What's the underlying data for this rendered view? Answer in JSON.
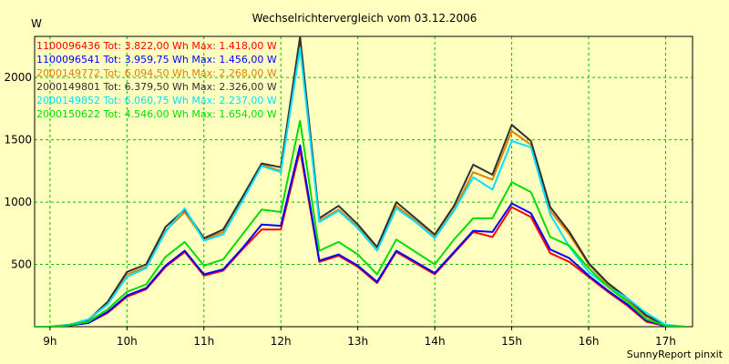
{
  "chart_data": {
    "type": "line",
    "title": "Wechselrichtervergleich vom 03.12.2006",
    "ylabel": "W",
    "xlabel": "",
    "footer": "SunnyReport pinxit",
    "x_tick_labels": [
      "9h",
      "10h",
      "11h",
      "12h",
      "13h",
      "14h",
      "15h",
      "16h",
      "17h"
    ],
    "x_tick_hours": [
      9,
      10,
      11,
      12,
      13,
      14,
      15,
      16,
      17
    ],
    "y_ticks": [
      500,
      1000,
      1500,
      2000
    ],
    "xlim": [
      8.8,
      17.35
    ],
    "ylim": [
      0,
      2330
    ],
    "grid": true,
    "legend_position": "top-left",
    "background_color": "#ffffc0",
    "x": [
      8.75,
      9.0,
      9.25,
      9.5,
      9.75,
      10.0,
      10.25,
      10.5,
      10.75,
      11.0,
      11.25,
      11.5,
      11.75,
      12.0,
      12.25,
      12.5,
      12.75,
      13.0,
      13.25,
      13.5,
      13.75,
      14.0,
      14.25,
      14.5,
      14.75,
      15.0,
      15.25,
      15.5,
      15.75,
      16.0,
      16.25,
      16.5,
      16.75,
      17.0,
      17.25
    ],
    "series": [
      {
        "name": "1100096436",
        "legend": "1100096436 Tot: 3.822,00 Wh Max: 1.418,00 W",
        "color": "#ff0000",
        "values": [
          0,
          0,
          10,
          30,
          110,
          240,
          300,
          480,
          600,
          410,
          450,
          620,
          780,
          780,
          1418,
          520,
          570,
          480,
          350,
          600,
          510,
          420,
          590,
          760,
          720,
          960,
          880,
          590,
          520,
          400,
          280,
          170,
          40,
          5,
          0
        ]
      },
      {
        "name": "1100096541",
        "legend": "1100096541 Tot: 3.959,75 Wh Max: 1.456,00 W",
        "color": "#0000ff",
        "values": [
          0,
          0,
          10,
          30,
          120,
          250,
          310,
          490,
          610,
          420,
          460,
          630,
          820,
          810,
          1456,
          530,
          580,
          490,
          360,
          610,
          520,
          430,
          600,
          770,
          760,
          990,
          910,
          620,
          550,
          410,
          290,
          180,
          50,
          5,
          0
        ]
      },
      {
        "name": "2000149772",
        "legend": "2000149772 Tot: 6.094,50 Wh Max: 2.268,00 W",
        "color": "#e08000",
        "values": [
          0,
          0,
          15,
          50,
          190,
          420,
          480,
          770,
          920,
          700,
          760,
          1020,
          1300,
          1250,
          2268,
          850,
          940,
          800,
          620,
          970,
          850,
          720,
          940,
          1240,
          1180,
          1570,
          1460,
          930,
          740,
          500,
          340,
          220,
          80,
          10,
          0
        ]
      },
      {
        "name": "2000149801",
        "legend": "2000149801 Tot: 6.379,50 Wh Max: 2.326,00 W",
        "color": "#303030",
        "values": [
          0,
          0,
          15,
          55,
          200,
          440,
          500,
          800,
          940,
          710,
          780,
          1040,
          1310,
          1280,
          2326,
          870,
          970,
          820,
          640,
          1000,
          870,
          740,
          970,
          1300,
          1220,
          1620,
          1490,
          960,
          760,
          510,
          350,
          230,
          90,
          10,
          0
        ]
      },
      {
        "name": "2000149852",
        "legend": "2000149852 Tot: 6.060,75 Wh Max: 2.237,00 W",
        "color": "#00e0ff",
        "values": [
          0,
          0,
          15,
          60,
          180,
          400,
          470,
          760,
          950,
          690,
          740,
          1010,
          1290,
          1240,
          2237,
          840,
          930,
          790,
          610,
          950,
          840,
          710,
          930,
          1200,
          1100,
          1490,
          1440,
          900,
          640,
          440,
          320,
          230,
          110,
          15,
          0
        ]
      },
      {
        "name": "2000150622",
        "legend": "2000150622 Tot: 4.546,00 Wh Max: 1.654,00 W",
        "color": "#00dd00",
        "values": [
          0,
          0,
          12,
          40,
          140,
          280,
          340,
          560,
          680,
          490,
          540,
          740,
          940,
          920,
          1654,
          610,
          680,
          580,
          420,
          700,
          600,
          500,
          700,
          870,
          870,
          1160,
          1080,
          720,
          650,
          470,
          320,
          200,
          60,
          8,
          0
        ]
      }
    ]
  }
}
